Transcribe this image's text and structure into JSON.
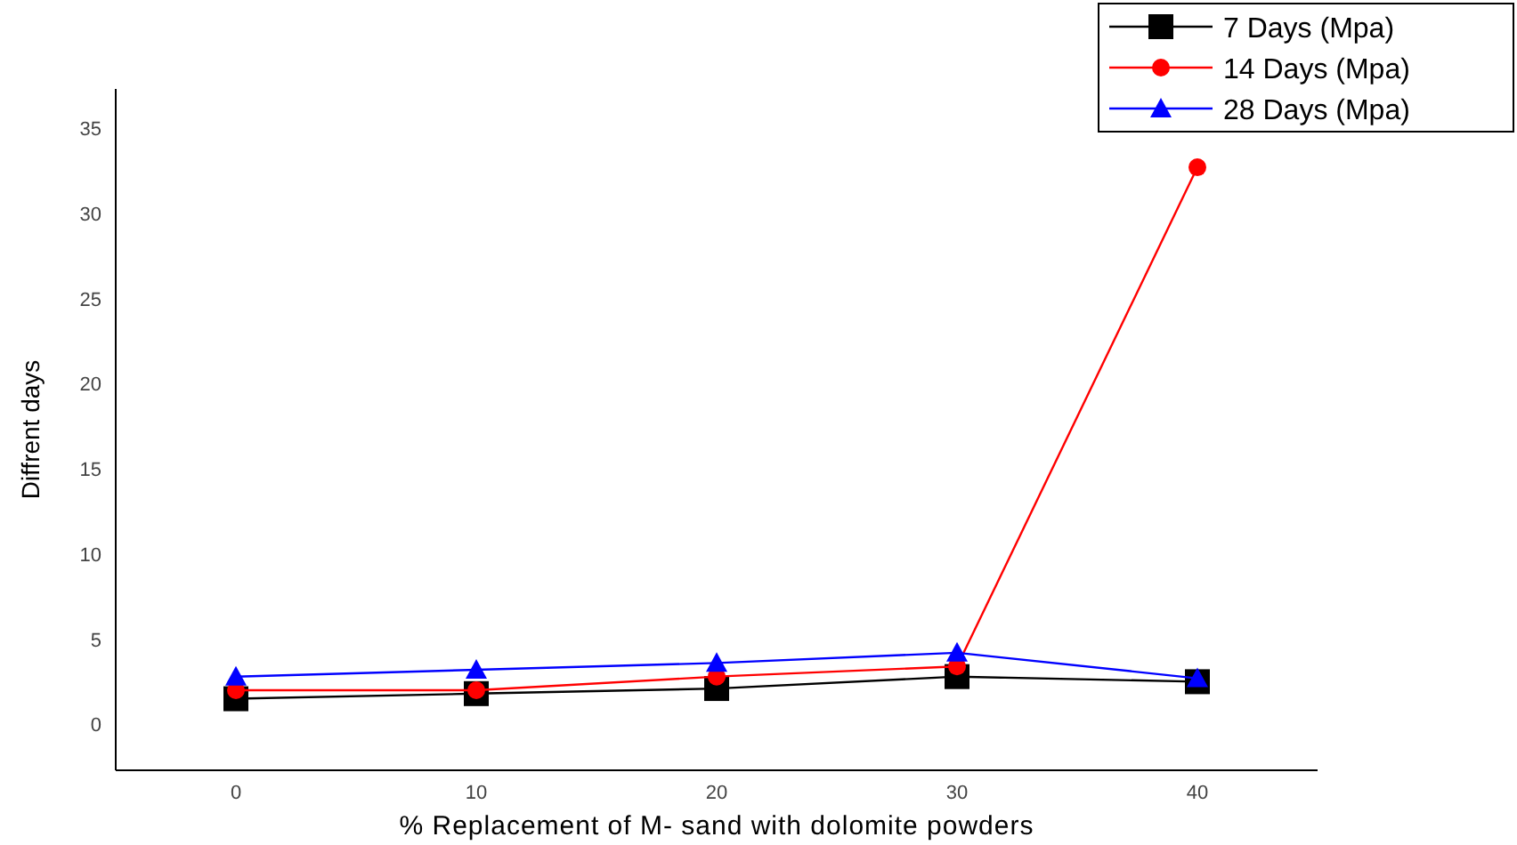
{
  "chart_data": {
    "type": "line",
    "xlabel": "% Replacement of M- sand with dolomite powders",
    "ylabel": "Diffrent days",
    "x": [
      0,
      10,
      20,
      30,
      40
    ],
    "series": [
      {
        "name": "7 Days (Mpa)",
        "color": "#000000",
        "marker": "square",
        "values": [
          1.5,
          1.8,
          2.1,
          2.8,
          2.5
        ]
      },
      {
        "name": "14 Days (Mpa)",
        "color": "#ff0000",
        "marker": "circle",
        "values": [
          2.0,
          2.0,
          2.8,
          3.4,
          32.7
        ]
      },
      {
        "name": "28 Days (Mpa)",
        "color": "#0000ff",
        "marker": "triangle",
        "values": [
          2.8,
          3.2,
          3.6,
          4.2,
          2.7
        ]
      }
    ],
    "xlim": [
      -5,
      45
    ],
    "xticks": [
      0,
      10,
      20,
      30,
      40
    ],
    "ylim": [
      -2.7,
      37.3
    ],
    "yticks": [
      0,
      5,
      10,
      15,
      20,
      25,
      30,
      35
    ],
    "grid": false,
    "legend": "top right"
  }
}
